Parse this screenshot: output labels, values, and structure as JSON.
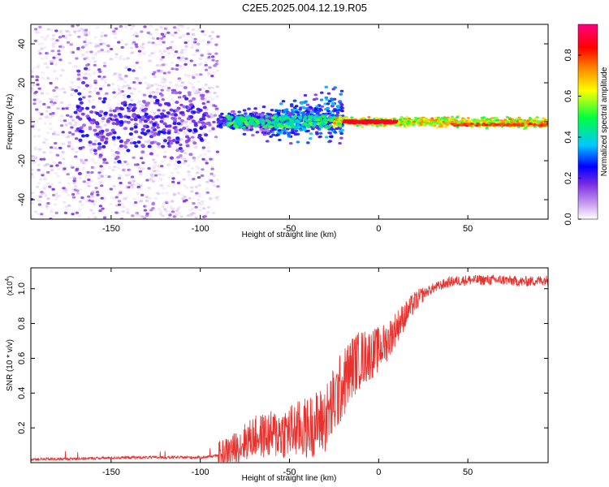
{
  "title": "C2E5.2025.004.12.19.R05",
  "chart_data": [
    {
      "type": "heatmap",
      "xlabel": "Height of straight line (km)",
      "ylabel": "Frequency (Hz)",
      "xlim": [
        -195,
        95
      ],
      "ylim": [
        -50,
        50
      ],
      "x_ticks": [
        -150,
        -100,
        -50,
        0,
        50
      ],
      "y_ticks": [
        -40,
        -20,
        0,
        20,
        40
      ],
      "colorbar": {
        "label": "Normalized spectral amplitude",
        "range": [
          0.0,
          0.95
        ],
        "ticks": [
          0.0,
          0.2,
          0.4,
          0.6,
          0.8
        ],
        "tick_labels": [
          "0.0",
          "0.2",
          "0.4",
          "0.6",
          "0.8"
        ],
        "colors": [
          "#ffffff",
          "#8a2be2",
          "#0000ff",
          "#00ffff",
          "#00ff00",
          "#ffff00",
          "#ff8000",
          "#ff0000",
          "#ff0080"
        ]
      },
      "regions": [
        {
          "x_range": [
            -195,
            -90
          ],
          "freq_spread": 50,
          "amplitude": 0.1,
          "description_noise": true
        },
        {
          "x_range": [
            -90,
            -25
          ],
          "freq_spread": 8,
          "amplitude": 0.25
        },
        {
          "x_range": [
            -25,
            95
          ],
          "freq_spread": 2,
          "amplitude": 0.7
        }
      ]
    },
    {
      "type": "line",
      "xlabel": "Height of straight line (km)",
      "ylabel": "SNR (10 * v/v)",
      "y_scale_label": "(x10",
      "y_scale_exp": "4",
      "y_scale_suffix": ")",
      "xlim": [
        -195,
        95
      ],
      "ylim": [
        0,
        1.12
      ],
      "x_ticks": [
        -150,
        -100,
        -50,
        0,
        50
      ],
      "y_ticks": [
        0.2,
        0.4,
        0.6,
        0.8,
        1.0
      ],
      "y_tick_labels": [
        "0.2",
        "0.4",
        "0.6",
        "0.8",
        "1.0"
      ],
      "line_color": "#e8302c",
      "series": [
        {
          "x": [
            -195,
            -180,
            -160,
            -140,
            -120,
            -100,
            -90,
            -80,
            -75,
            -70,
            -60,
            -50,
            -40,
            -30,
            -25,
            -20,
            -15,
            -10,
            -5,
            0,
            5,
            10,
            15,
            20,
            25,
            30,
            35,
            40,
            50,
            60,
            70,
            80,
            95
          ],
          "y": [
            0.02,
            0.02,
            0.025,
            0.03,
            0.03,
            0.03,
            0.04,
            0.08,
            0.12,
            0.15,
            0.16,
            0.18,
            0.2,
            0.25,
            0.35,
            0.45,
            0.55,
            0.6,
            0.62,
            0.65,
            0.7,
            0.78,
            0.85,
            0.92,
            0.97,
            1.0,
            1.02,
            1.04,
            1.05,
            1.05,
            1.05,
            1.04,
            1.05
          ]
        }
      ]
    }
  ]
}
